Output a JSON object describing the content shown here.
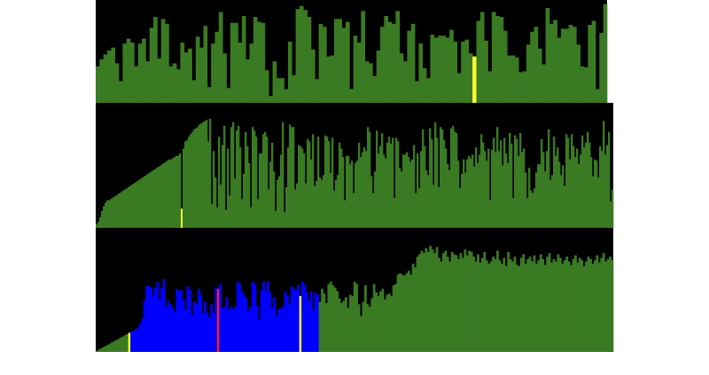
{
  "title": "",
  "colors": {
    "background": "#000000",
    "page": "#ffffff",
    "default_bar": "#3a7a22",
    "highlight_yellow": "#ffff33",
    "highlight_red": "#ff1a1a",
    "active_blue": "#0000ff"
  },
  "chart_data": [
    {
      "type": "bar",
      "title": "",
      "xlabel": "",
      "ylabel": "",
      "ylim": [
        0,
        100
      ],
      "grid": false,
      "legend": "none",
      "values": [
        37,
        44,
        49,
        53,
        56,
        40,
        22,
        60,
        65,
        61,
        37,
        60,
        65,
        42,
        76,
        87,
        45,
        85,
        80,
        37,
        40,
        34,
        61,
        51,
        55,
        23,
        67,
        56,
        78,
        16,
        60,
        72,
        92,
        50,
        15,
        81,
        81,
        61,
        88,
        44,
        60,
        87,
        82,
        81,
        33,
        7,
        42,
        25,
        25,
        14,
        62,
        28,
        95,
        98,
        94,
        87,
        54,
        24,
        80,
        77,
        47,
        48,
        85,
        85,
        76,
        82,
        14,
        68,
        61,
        93,
        42,
        40,
        27,
        53,
        77,
        88,
        82,
        80,
        93,
        50,
        42,
        73,
        80,
        22,
        60,
        35,
        25,
        69,
        66,
        68,
        68,
        66,
        74,
        62,
        30,
        62,
        64,
        50,
        47,
        83,
        92,
        63,
        32,
        92,
        88,
        87,
        73,
        48,
        48,
        46,
        31,
        32,
        59,
        72,
        77,
        55,
        39,
        96,
        80,
        84,
        66,
        75,
        75,
        79,
        77,
        59,
        37,
        36,
        79,
        83,
        14,
        71,
        100
      ],
      "bar_colors": {
        "98": "highlight_yellow"
      }
    },
    {
      "type": "bar",
      "title": "",
      "xlabel": "",
      "ylabel": "",
      "ylim": [
        0,
        100
      ],
      "grid": false,
      "legend": "none",
      "values": [
        3,
        5,
        9,
        14,
        18,
        21,
        23,
        23,
        24,
        25,
        26,
        27,
        28,
        29,
        30,
        31,
        32,
        33,
        34,
        35,
        36,
        37,
        38,
        39,
        40,
        41,
        42,
        43,
        44,
        45,
        46,
        47,
        48,
        49,
        50,
        51,
        52,
        53,
        54,
        55,
        56,
        57,
        57,
        58,
        59,
        60,
        60,
        62,
        16,
        66,
        72,
        73,
        76,
        78,
        80,
        82,
        83,
        84,
        86,
        87,
        88,
        89,
        90,
        72,
        91,
        20,
        64,
        42,
        17,
        76,
        36,
        69,
        85,
        15,
        66,
        27,
        84,
        88,
        41,
        81,
        85,
        67,
        24,
        45,
        80,
        68,
        54,
        17,
        84,
        81,
        76,
        24,
        62,
        62,
        78,
        80,
        76,
        32,
        55,
        71,
        47,
        14,
        40,
        43,
        61,
        88,
        13,
        34,
        67,
        86,
        84,
        84,
        32,
        37,
        69,
        68,
        66,
        62,
        37,
        74,
        72,
        57,
        78,
        35,
        39,
        76,
        42,
        40,
        44,
        77,
        76,
        72,
        46,
        75,
        31,
        40,
        44,
        71,
        66,
        59,
        23,
        60,
        60,
        53,
        56,
        29,
        54,
        56,
        71,
        59,
        63,
        67,
        64,
        84,
        80,
        43,
        29,
        47,
        81,
        62,
        68,
        79,
        61,
        58,
        71,
        76,
        70,
        75,
        25,
        75,
        72,
        50,
        47,
        61,
        61,
        63,
        59,
        55,
        57,
        69,
        29,
        62,
        33,
        64,
        82,
        68,
        48,
        44,
        83,
        74,
        36,
        88,
        75,
        34,
        84,
        82,
        73,
        66,
        53,
        48,
        83,
        85,
        80,
        79,
        56,
        33,
        45,
        57,
        46,
        57,
        60,
        58,
        61,
        51,
        67,
        54,
        61,
        78,
        71,
        64,
        56,
        66,
        23,
        65,
        75,
        63,
        84,
        64,
        73,
        52,
        75,
        62,
        54,
        79,
        70,
        25,
        77,
        74,
        60,
        79,
        63,
        66,
        46,
        25,
        50,
        31,
        29,
        33,
        46,
        53,
        53,
        74,
        63,
        47,
        64,
        82,
        40,
        44,
        76,
        60,
        67,
        55,
        44,
        52,
        35,
        78,
        75,
        57,
        78,
        68,
        59,
        66,
        53,
        61,
        77,
        67,
        71,
        80,
        71,
        59,
        43,
        57,
        56,
        42,
        68,
        64,
        89,
        61,
        69,
        80,
        22,
        32
      ],
      "bar_colors": {
        "48": "highlight_yellow"
      }
    },
    {
      "type": "bar",
      "title": "",
      "xlabel": "",
      "ylabel": "",
      "ylim": [
        0,
        100
      ],
      "grid": false,
      "legend": "none",
      "values": [
        1,
        2,
        3,
        4,
        5,
        6,
        7,
        8,
        9,
        10,
        11,
        12,
        13,
        14,
        15,
        16,
        17,
        18,
        19,
        20,
        24,
        28,
        43,
        55,
        56,
        54,
        47,
        54,
        59,
        44,
        54,
        61,
        38,
        43,
        40,
        37,
        34,
        53,
        51,
        52,
        44,
        35,
        55,
        52,
        31,
        42,
        40,
        53,
        48,
        33,
        42,
        33,
        29,
        40,
        33,
        54,
        53,
        57,
        37,
        38,
        46,
        35,
        38,
        36,
        38,
        59,
        57,
        51,
        47,
        45,
        34,
        38,
        59,
        57,
        39,
        27,
        52,
        59,
        51,
        59,
        50,
        37,
        46,
        30,
        36,
        37,
        38,
        51,
        47,
        40,
        55,
        53,
        52,
        56,
        47,
        59,
        56,
        50,
        43,
        51,
        35,
        50,
        48,
        42,
        53,
        49,
        41,
        57,
        59,
        56,
        54,
        51,
        45,
        41,
        43,
        46,
        37,
        48,
        47,
        59,
        57,
        40,
        30,
        42,
        56,
        40,
        38,
        45,
        57,
        50,
        47,
        51,
        53,
        44,
        48,
        49,
        47,
        56,
        57,
        65,
        66,
        65,
        64,
        66,
        68,
        65,
        74,
        71,
        80,
        82,
        85,
        83,
        87,
        84,
        89,
        86,
        83,
        88,
        79,
        76,
        83,
        85,
        80,
        76,
        84,
        82,
        81,
        78,
        83,
        79,
        86,
        81,
        85,
        84,
        80,
        76,
        82,
        75,
        79,
        84,
        77,
        74,
        76,
        80,
        78,
        85,
        77,
        74,
        79,
        72,
        84,
        78,
        76,
        80,
        73,
        72,
        79,
        82,
        74,
        78,
        80,
        76,
        81,
        74,
        77,
        82,
        78,
        73,
        80,
        83,
        75,
        78,
        76,
        82,
        79,
        74,
        77,
        80,
        76,
        73,
        78,
        81,
        75,
        79,
        77,
        72,
        76,
        80,
        78,
        74,
        77,
        81,
        75,
        79,
        83,
        76,
        78,
        80,
        77
      ],
      "bar_colors": {
        "15": "highlight_yellow",
        "56": "highlight_red",
        "94": "highlight_yellow",
        "range_blue": [
          16,
          102
        ]
      }
    }
  ]
}
